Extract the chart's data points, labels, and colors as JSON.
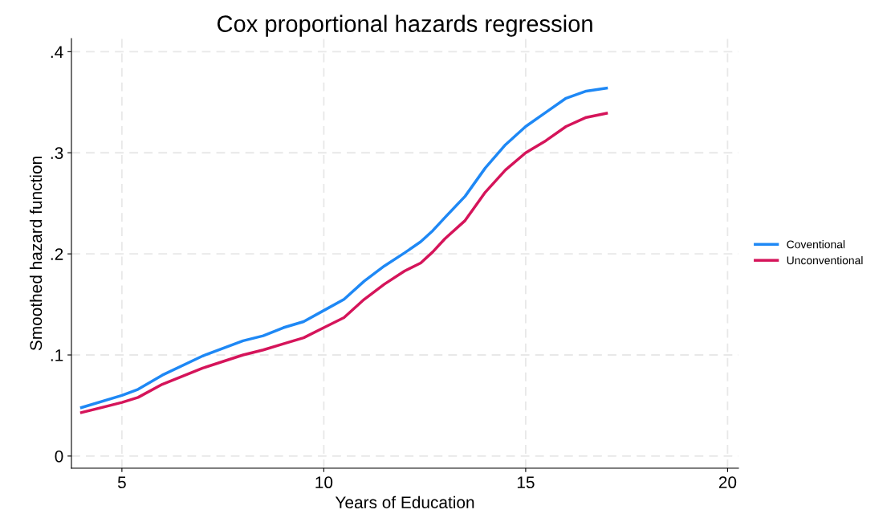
{
  "chart_data": {
    "type": "line",
    "title": "Cox proportional hazards regression",
    "xlabel": "Years of Education",
    "ylabel": "Smoothed hazard function",
    "x": [
      4,
      5,
      5.4,
      6,
      7,
      8,
      8.5,
      9,
      9.5,
      10,
      10.5,
      11,
      11.5,
      12,
      12.4,
      12.7,
      13,
      13.5,
      14,
      14.5,
      15,
      15.5,
      16,
      16.5,
      17
    ],
    "series": [
      {
        "name": "Coventional",
        "color": "#1e88f5",
        "values": [
          0.048,
          0.06,
          0.066,
          0.08,
          0.099,
          0.114,
          0.119,
          0.127,
          0.133,
          0.144,
          0.155,
          0.173,
          0.188,
          0.201,
          0.212,
          0.223,
          0.236,
          0.257,
          0.285,
          0.308,
          0.326,
          0.34,
          0.354,
          0.361,
          0.364
        ]
      },
      {
        "name": "Unconventional",
        "color": "#d5145a",
        "values": [
          0.043,
          0.053,
          0.058,
          0.071,
          0.087,
          0.1,
          0.105,
          0.111,
          0.117,
          0.127,
          0.137,
          0.155,
          0.17,
          0.183,
          0.191,
          0.202,
          0.215,
          0.233,
          0.261,
          0.283,
          0.3,
          0.312,
          0.326,
          0.335,
          0.339
        ]
      }
    ],
    "xlim": [
      3.75,
      20.27
    ],
    "ylim": [
      -0.012,
      0.413
    ],
    "xticks": [
      5,
      10,
      15,
      20
    ],
    "yticks": [
      0,
      {
        "value": 0.1,
        "label": ".1"
      },
      {
        "value": 0.2,
        "label": ".2"
      },
      {
        "value": 0.3,
        "label": ".3"
      },
      {
        "value": 0.4,
        "label": ".4"
      }
    ],
    "grid": true,
    "legend": "right",
    "marker": "none",
    "line_style": "solid"
  }
}
